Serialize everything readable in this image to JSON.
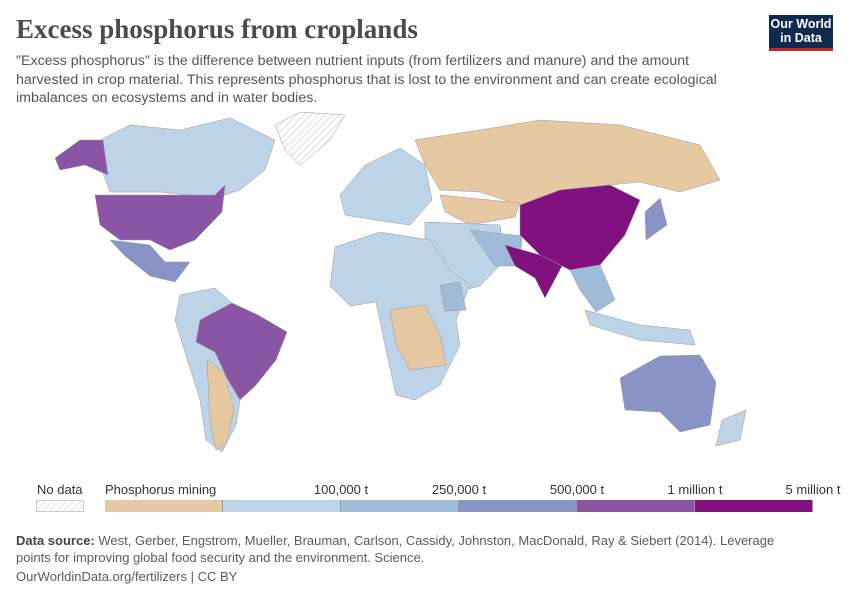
{
  "header": {
    "title": "Excess phosphorus from croplands",
    "subtitle": "\"Excess phosphorus\" is the difference between nutrient inputs (from fertilizers and manure) and the amount harvested in crop material. This represents phosphorus that is lost to the environment and can create ecological imbalances on ecosystems and in water bodies.",
    "logo": "Our World in Data"
  },
  "legend": {
    "no_data": "No data",
    "bins": [
      {
        "label": "Phosphorus mining",
        "color": "#e6c9a2"
      },
      {
        "label": "",
        "color": "#bdd3e8"
      },
      {
        "label": "100,000 t",
        "color": "#9ebbd9"
      },
      {
        "label": "250,000 t",
        "color": "#8a93c5"
      },
      {
        "label": "500,000 t",
        "color": "#8a55a5"
      },
      {
        "label": "1 million t",
        "color": "#80117e"
      }
    ],
    "max_label": "5 million t"
  },
  "regions": [
    {
      "name": "Canada",
      "bin": 1
    },
    {
      "name": "United States",
      "bin": 4
    },
    {
      "name": "Mexico",
      "bin": 3
    },
    {
      "name": "Greenland",
      "bin": -1
    },
    {
      "name": "Brazil",
      "bin": 4
    },
    {
      "name": "South America other",
      "bin": 1
    },
    {
      "name": "Argentina",
      "bin": 0
    },
    {
      "name": "Europe",
      "bin": 1
    },
    {
      "name": "Russia",
      "bin": 0
    },
    {
      "name": "Kazakhstan",
      "bin": 0
    },
    {
      "name": "China",
      "bin": 5
    },
    {
      "name": "India",
      "bin": 5
    },
    {
      "name": "Middle East",
      "bin": 1
    },
    {
      "name": "Iran & Pakistan",
      "bin": 2
    },
    {
      "name": "Africa",
      "bin": 1
    },
    {
      "name": "Central & Southern Africa",
      "bin": 0
    },
    {
      "name": "Ethiopia",
      "bin": 2
    },
    {
      "name": "Southeast Asia",
      "bin": 2
    },
    {
      "name": "Indonesia",
      "bin": 1
    },
    {
      "name": "Japan",
      "bin": 3
    },
    {
      "name": "Australia",
      "bin": 3
    },
    {
      "name": "New Zealand",
      "bin": 1
    }
  ],
  "footer": {
    "source_label": "Data source:",
    "source": " West, Gerber, Engstrom, Mueller, Brauman, Carlson, Cassidy, Johnston, MacDonald, Ray & Siebert (2014). Leverage points for improving global food security and the environment. Science.",
    "url": "OurWorldinData.org/fertilizers | CC BY"
  }
}
